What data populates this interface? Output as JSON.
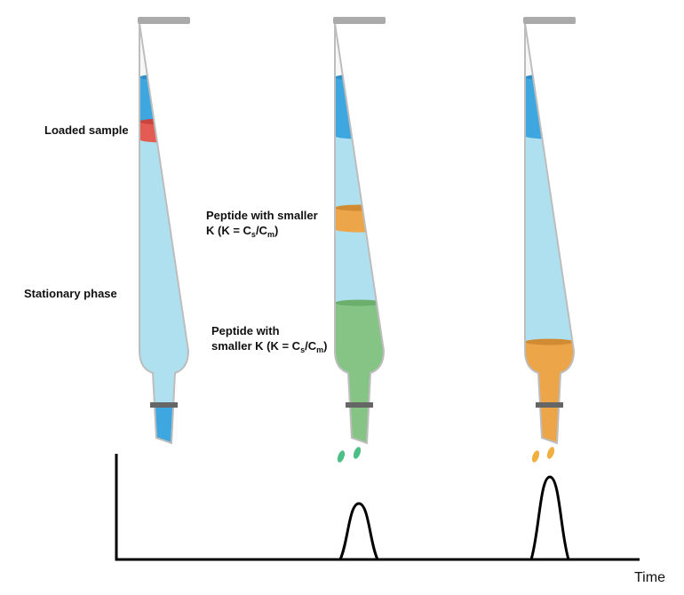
{
  "labels": {
    "loaded_sample": "Loaded sample",
    "stationary_phase": "Stationary phase",
    "peptide_1": {
      "line1": "Peptide with smaller",
      "line2": [
        "K (K = C",
        "s",
        "/C",
        "m",
        ")"
      ]
    },
    "peptide_2": {
      "line1": "Peptide with",
      "line2": [
        "smaller K (K = C",
        "s",
        "/C",
        "m",
        ")"
      ]
    }
  },
  "axis": {
    "x_label": "Time"
  }
}
